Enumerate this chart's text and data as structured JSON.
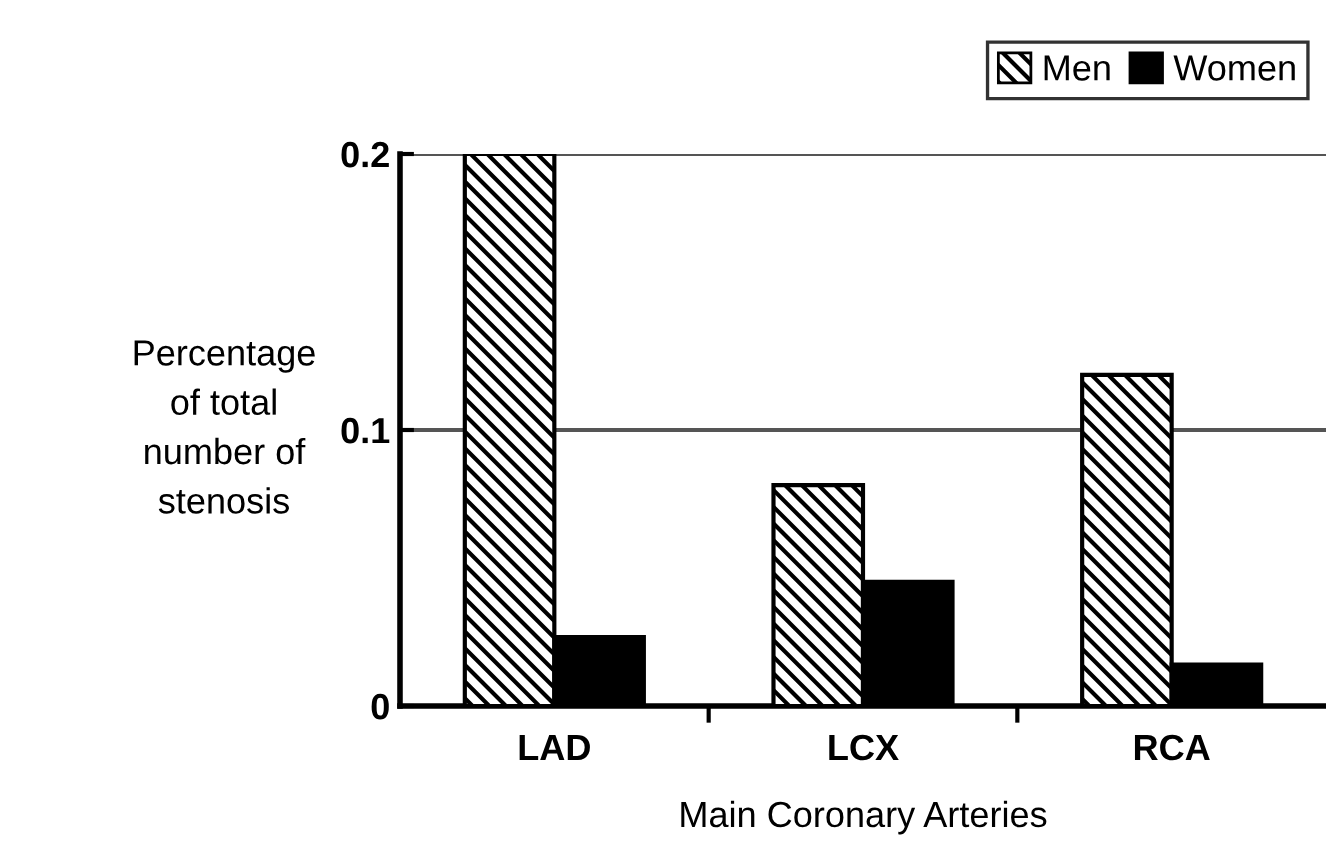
{
  "chart_data": {
    "type": "bar",
    "xlabel": "Main Coronary Arteries",
    "ylabel": "Percentage\nof total\nnumber of\nstenosis",
    "categories": [
      "LAD",
      "LCX",
      "RCA"
    ],
    "series": [
      {
        "name": "Men",
        "color": "#000000",
        "values": [
          0.2,
          0.08,
          0.12
        ]
      },
      {
        "name": "Women",
        "color": "#000000",
        "values": [
          0.025,
          0.045,
          0.015
        ]
      }
    ],
    "ylim": [
      0,
      0.2
    ],
    "yticks": [
      {
        "value": 0,
        "label": "0"
      },
      0.1,
      0.2
    ],
    "grid": "y",
    "legend": "top right"
  }
}
